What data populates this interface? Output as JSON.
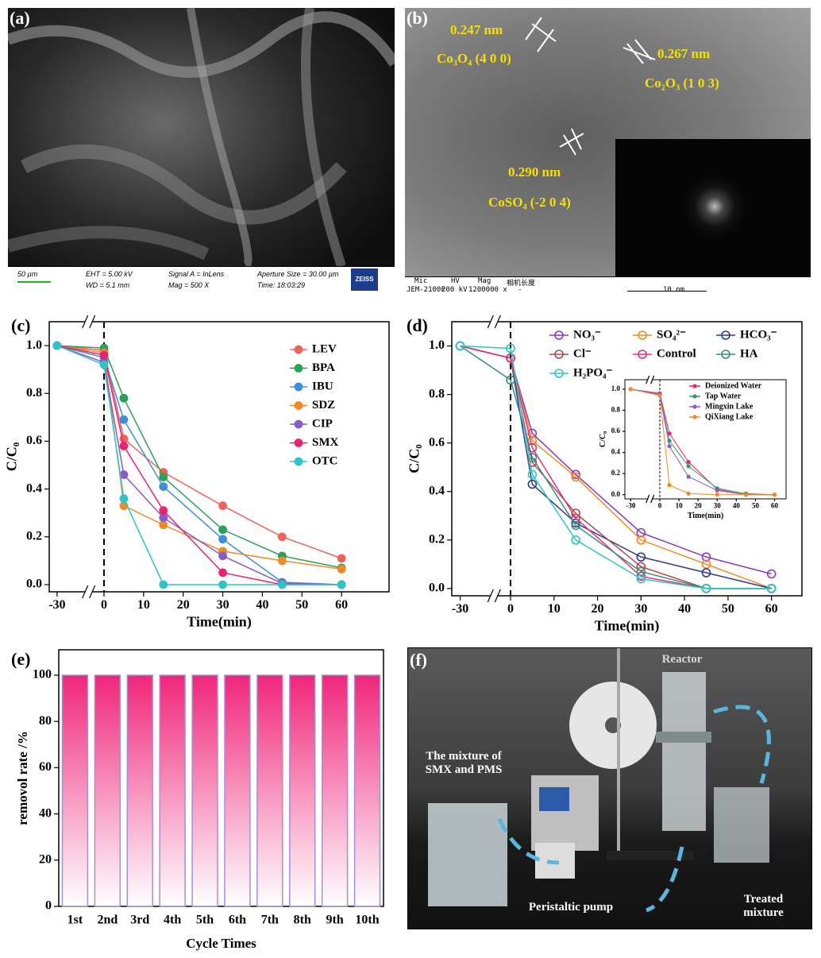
{
  "panel_a": {
    "label": "(a)",
    "scale_bar": "50 µm",
    "info": [
      "EHT = 5.00 kV",
      "WD = 5.1 mm",
      "Signal A = InLens",
      "Mag = 500 X",
      "Aperture Size = 30.00 µm",
      "Time: 18:03:29"
    ],
    "logo": "ZEISS"
  },
  "panel_b": {
    "label": "(b)",
    "annotations": [
      {
        "spacing": "0.247 nm",
        "plane": "Co₃O₄ (4 0 0)"
      },
      {
        "spacing": "0.267 nm",
        "plane": "Co₂O₃ (1 0 3)"
      },
      {
        "spacing": "0.290 nm",
        "plane": "CoSO₄ (-2 0 4)"
      }
    ],
    "info": [
      "Mic",
      "HV",
      "Mag",
      "相机长度",
      "JEM-2100F",
      "200 kV",
      "1200000 x",
      "-"
    ],
    "scale_bar": "10 nm"
  },
  "panel_f": {
    "label": "(f)",
    "annotations": [
      "Reactor",
      "The mixture of SMX and PMS",
      "Peristaltic pump",
      "Treated mixture"
    ]
  },
  "chart_data": [
    {
      "type": "line",
      "panel_label": "(c)",
      "x_label": "Time(min)",
      "y_label": "C/C₀",
      "x_axis_break": true,
      "marker_fill": true,
      "vline": 0,
      "x": [
        -30,
        0,
        5,
        15,
        30,
        45,
        60
      ],
      "xlim": [
        -35,
        72
      ],
      "xticks": [
        -30,
        0,
        10,
        20,
        30,
        40,
        50,
        60
      ],
      "ylim": [
        -0.03,
        1.1
      ],
      "yticks": [
        {
          "value": 0,
          "label": "0.0"
        },
        {
          "value": 0.2,
          "label": "0.2"
        },
        {
          "value": 0.4,
          "label": "0.4"
        },
        {
          "value": 0.6,
          "label": "0.6"
        },
        {
          "value": 0.8,
          "label": "0.8"
        },
        {
          "value": 1.0,
          "label": "1.0"
        }
      ],
      "legend": "upper right",
      "series": [
        {
          "name": "LEV",
          "color": "#f0635a",
          "values": [
            1.0,
            0.98,
            0.61,
            0.47,
            0.33,
            0.2,
            0.11
          ]
        },
        {
          "name": "BPA",
          "color": "#2ca05a",
          "values": [
            1.0,
            0.99,
            0.78,
            0.45,
            0.23,
            0.12,
            0.07
          ]
        },
        {
          "name": "IBU",
          "color": "#3c8fd8",
          "values": [
            1.0,
            0.95,
            0.69,
            0.41,
            0.19,
            0.01,
            0.0
          ]
        },
        {
          "name": "SDZ",
          "color": "#f08a24",
          "values": [
            1.0,
            0.97,
            0.33,
            0.25,
            0.14,
            0.1,
            0.065
          ]
        },
        {
          "name": "CIP",
          "color": "#8a5ac8",
          "values": [
            1.0,
            0.93,
            0.46,
            0.28,
            0.12,
            0.005,
            0.0
          ]
        },
        {
          "name": "SMX",
          "color": "#e8246e",
          "values": [
            1.0,
            0.96,
            0.58,
            0.31,
            0.05,
            0.0,
            0.0
          ]
        },
        {
          "name": "OTC",
          "color": "#2ec5c5",
          "values": [
            1.0,
            0.92,
            0.36,
            0.0,
            0.0,
            0.0,
            0.0
          ]
        }
      ]
    },
    {
      "type": "line",
      "panel_label": "(d)",
      "x_label": "Time(min)",
      "y_label": "C/C₀",
      "x_axis_break": true,
      "marker_fill": false,
      "vline": 0,
      "x": [
        -30,
        0,
        5,
        15,
        30,
        45,
        60
      ],
      "xlim": [
        -35,
        67
      ],
      "xticks": [
        -30,
        0,
        10,
        20,
        30,
        40,
        50,
        60
      ],
      "ylim": [
        -0.03,
        1.1
      ],
      "yticks": [
        {
          "value": 0,
          "label": "0.0"
        },
        {
          "value": 0.2,
          "label": "0.2"
        },
        {
          "value": 0.4,
          "label": "0.4"
        },
        {
          "value": 0.6,
          "label": "0.6"
        },
        {
          "value": 0.8,
          "label": "0.8"
        },
        {
          "value": 1.0,
          "label": "1.0"
        }
      ],
      "legend": "top",
      "series": [
        {
          "name": "NO₃⁻",
          "color": "#8a3ab9",
          "values": [
            1.0,
            0.95,
            0.64,
            0.47,
            0.23,
            0.13,
            0.06
          ]
        },
        {
          "name": "SO₄²⁻",
          "color": "#f08a24",
          "values": [
            1.0,
            0.95,
            0.61,
            0.46,
            0.2,
            0.1,
            0.0
          ]
        },
        {
          "name": "HCO₃⁻",
          "color": "#2f3a8f",
          "values": [
            1.0,
            0.95,
            0.43,
            0.27,
            0.13,
            0.065,
            0.0
          ]
        },
        {
          "name": "Cl⁻",
          "color": "#b04a4a",
          "values": [
            1.0,
            0.95,
            0.52,
            0.31,
            0.09,
            0.0,
            0.0
          ]
        },
        {
          "name": "Control",
          "color": "#e0307a",
          "values": [
            1.0,
            0.95,
            0.58,
            0.29,
            0.05,
            0.0,
            0.0
          ]
        },
        {
          "name": "HA",
          "color": "#3a8f7a",
          "values": [
            1.0,
            0.86,
            0.54,
            0.26,
            0.07,
            0.0,
            0.0
          ]
        },
        {
          "name": "H₂PO₄⁻",
          "color": "#30c5c5",
          "values": [
            1.0,
            0.99,
            0.47,
            0.2,
            0.04,
            0.0,
            0.0
          ]
        }
      ]
    },
    {
      "type": "line",
      "x_label": "Time(min)",
      "y_label": "C/C₀",
      "x_axis_break": true,
      "marker_fill": true,
      "vline": 0,
      "x": [
        -30,
        0,
        5,
        15,
        30,
        45,
        60
      ],
      "xlim": [
        -36,
        66
      ],
      "xticks": [
        -30,
        0,
        10,
        20,
        30,
        40,
        50,
        60
      ],
      "ylim": [
        -0.04,
        1.09
      ],
      "yticks": [
        {
          "value": 0,
          "label": "0.0"
        },
        {
          "value": 0.2,
          "label": "0.2"
        },
        {
          "value": 0.4,
          "label": "0.4"
        },
        {
          "value": 0.6,
          "label": "0.6"
        },
        {
          "value": 0.8,
          "label": "0.8"
        },
        {
          "value": 1.0,
          "label": "1.0"
        }
      ],
      "legend": "upper right",
      "series": [
        {
          "name": "Deionized Water",
          "color": "#e8246e",
          "values": [
            1.0,
            0.96,
            0.58,
            0.31,
            0.05,
            0.0,
            0.0
          ]
        },
        {
          "name": "Tap Water",
          "color": "#2ca05a",
          "values": [
            1.0,
            0.95,
            0.51,
            0.27,
            0.06,
            0.01,
            0.0
          ]
        },
        {
          "name": "Mingxin Lake",
          "color": "#8a5ac8",
          "values": [
            1.0,
            0.95,
            0.46,
            0.17,
            0.04,
            0.0,
            0.0
          ]
        },
        {
          "name": "QiXiang Lake",
          "color": "#f08a24",
          "values": [
            1.0,
            0.94,
            0.09,
            0.01,
            0.0,
            0.0,
            0.0
          ]
        }
      ]
    },
    {
      "type": "bar",
      "panel_label": "(e)",
      "x_label": "Cycle Times",
      "y_label": "removol rate /%",
      "categories": [
        "1st",
        "2nd",
        "3rd",
        "4th",
        "5th",
        "6th",
        "7th",
        "8th",
        "9th",
        "10th"
      ],
      "values": [
        100,
        100,
        100,
        100,
        100,
        100,
        100,
        100,
        100,
        100
      ],
      "color": "#f0267a",
      "ylim": [
        0,
        111
      ],
      "yticks": [
        0,
        20,
        40,
        60,
        80,
        100
      ]
    }
  ]
}
